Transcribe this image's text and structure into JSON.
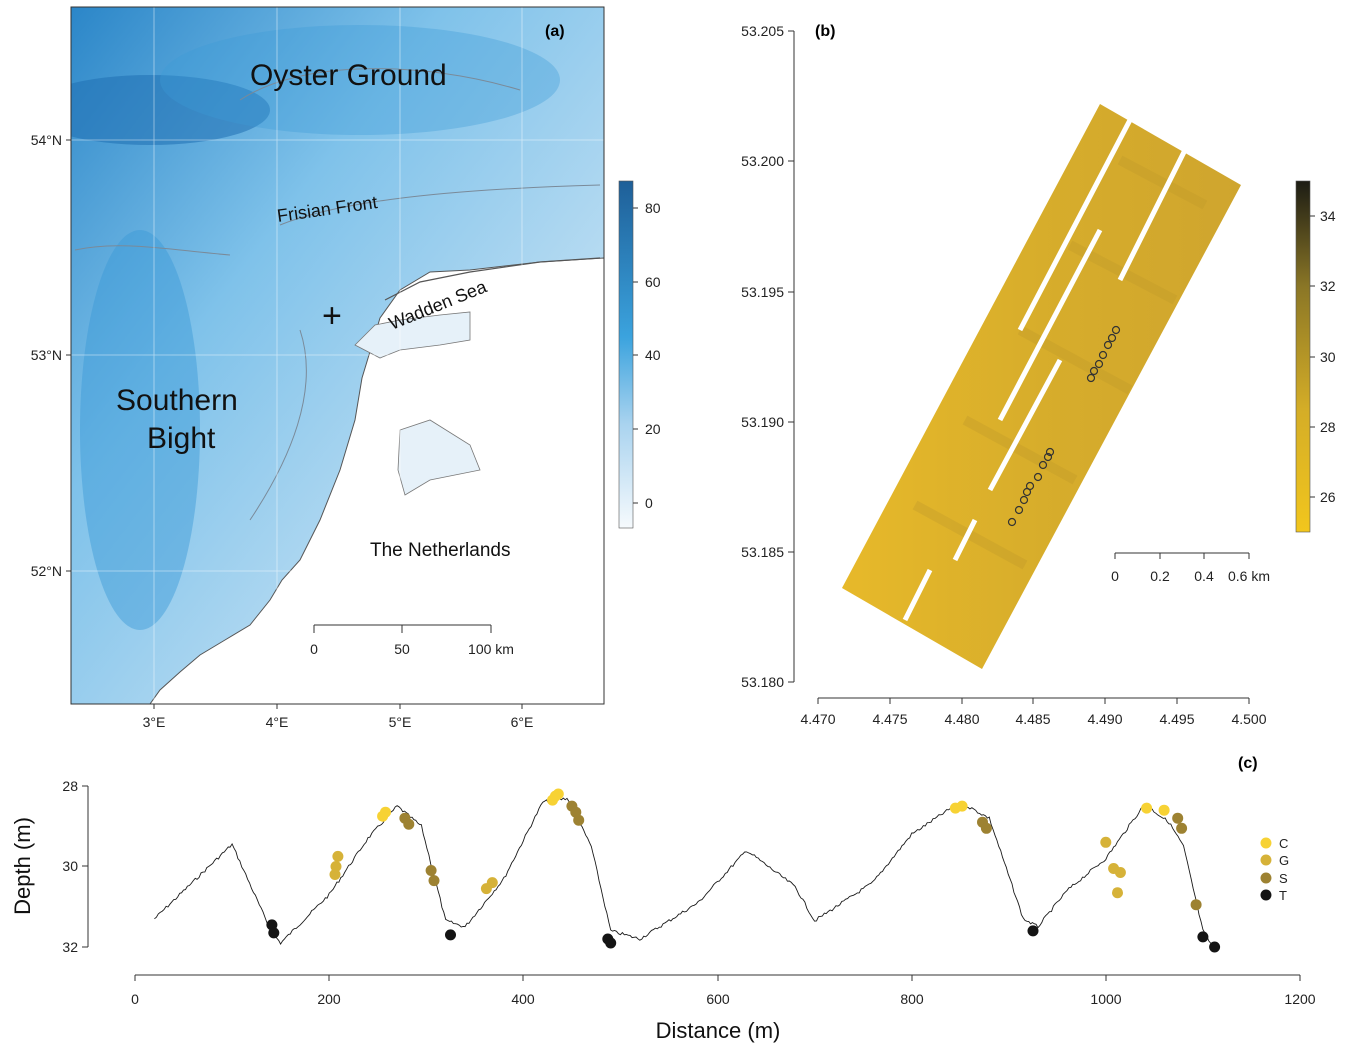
{
  "colors": {
    "sea_deep": "#1f6fb3",
    "sea_mid": "#3ea6dc",
    "sea_shallow": "#cfe6f4",
    "land": "#ffffff",
    "bathy_low": "#f2c61d",
    "bathy_high": "#1c1c14",
    "C": "#f7d234",
    "G": "#d6b238",
    "S": "#9d8232",
    "T": "#141414"
  },
  "panel_a": {
    "label": "(a)",
    "places": {
      "oyster_ground": "Oyster Ground",
      "frisian_front": "Frisian Front",
      "wadden_sea": "Wadden Sea",
      "southern": "Southern",
      "bight": "Bight",
      "netherlands": "The Netherlands"
    },
    "site_marker": "+",
    "lat_ticks": [
      "54°N",
      "53°N",
      "52°N"
    ],
    "lon_ticks": [
      "3°E",
      "4°E",
      "5°E",
      "6°E"
    ],
    "scalebar": {
      "labels": [
        "0",
        "50",
        "100 km"
      ]
    },
    "colorbar": {
      "ticks": [
        "80",
        "60",
        "40",
        "20",
        "0"
      ],
      "range": [
        -7,
        87
      ]
    }
  },
  "panel_b": {
    "label": "(b)",
    "y_ticks": [
      "53.205",
      "53.200",
      "53.195",
      "53.190",
      "53.185",
      "53.180"
    ],
    "x_ticks": [
      "4.470",
      "4.475",
      "4.480",
      "4.485",
      "4.490",
      "4.495",
      "4.500"
    ],
    "scalebar": {
      "labels": [
        "0",
        "0.2",
        "0.4",
        "0.6 km"
      ]
    },
    "colorbar": {
      "ticks": [
        "34",
        "32",
        "30",
        "28",
        "26"
      ],
      "range": [
        25,
        35
      ]
    }
  },
  "chart_data": {
    "type": "scatter",
    "label": "(c)",
    "xlabel": "Distance (m)",
    "ylabel": "Depth (m)",
    "xlim": [
      0,
      1200
    ],
    "ylim": [
      32,
      28
    ],
    "x_ticks": [
      "0",
      "200",
      "400",
      "600",
      "800",
      "1000",
      "1200"
    ],
    "y_ticks": [
      "28",
      "30",
      "32"
    ],
    "profile": {
      "x": [
        20,
        100,
        140,
        150,
        200,
        240,
        270,
        295,
        320,
        340,
        380,
        420,
        445,
        470,
        490,
        520,
        580,
        630,
        680,
        700,
        760,
        800,
        850,
        880,
        915,
        930,
        960,
        1000,
        1040,
        1065,
        1080,
        1100,
        1110
      ],
      "y": [
        31.3,
        29.45,
        31.6,
        31.9,
        30.7,
        29.3,
        28.5,
        29.0,
        31.35,
        31.5,
        30.3,
        28.4,
        28.3,
        29.5,
        31.6,
        31.8,
        30.9,
        29.6,
        30.5,
        31.35,
        30.4,
        29.2,
        28.4,
        28.8,
        31.3,
        31.5,
        30.6,
        29.8,
        28.45,
        28.9,
        29.5,
        31.6,
        32.0
      ]
    },
    "series": [
      {
        "name": "C",
        "x": [
          255,
          258,
          430,
          433,
          436,
          845,
          852,
          1042,
          1060
        ],
        "y": [
          28.75,
          28.65,
          28.35,
          28.25,
          28.2,
          28.55,
          28.5,
          28.55,
          28.6
        ]
      },
      {
        "name": "G",
        "x": [
          206,
          207,
          209,
          362,
          368,
          1000,
          1008,
          1012,
          1015
        ],
        "y": [
          30.2,
          30.0,
          29.75,
          30.55,
          30.4,
          29.4,
          30.05,
          30.65,
          30.15
        ]
      },
      {
        "name": "S",
        "x": [
          278,
          282,
          305,
          308,
          450,
          454,
          457,
          873,
          877,
          1074,
          1078,
          1093
        ],
        "y": [
          28.8,
          28.95,
          30.1,
          30.35,
          28.5,
          28.65,
          28.85,
          28.9,
          29.05,
          28.8,
          29.05,
          30.95
        ]
      },
      {
        "name": "T",
        "x": [
          141,
          143,
          325,
          487,
          490,
          925,
          1100,
          1112
        ],
        "y": [
          31.45,
          31.65,
          31.7,
          31.8,
          31.9,
          31.6,
          31.75,
          32.0
        ]
      }
    ],
    "legend_position": "right"
  }
}
